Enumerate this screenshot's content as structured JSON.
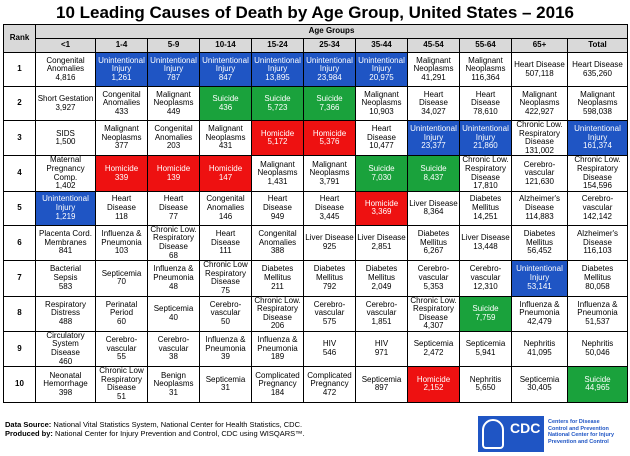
{
  "title": "10 Leading Causes of Death by Age Group, United States – 2016",
  "group_header": "Age Groups",
  "rank_header": "Rank",
  "colors": {
    "unintentional_injury": "#1f55c4",
    "suicide": "#1aa23c",
    "homicide": "#ee1111"
  },
  "chart_data": {
    "type": "table",
    "title": "10 Leading Causes of Death by Age Group, United States – 2016",
    "columns": [
      "<1",
      "1-4",
      "5-9",
      "10-14",
      "15-24",
      "25-34",
      "35-44",
      "45-54",
      "55-64",
      "65+",
      "Total"
    ],
    "rows": [
      {
        "rank": "1",
        "cells": [
          {
            "cause": "Congenital Anomalies",
            "deaths": "4,816",
            "color": "none"
          },
          {
            "cause": "Unintentional Injury",
            "deaths": "1,261",
            "color": "blue"
          },
          {
            "cause": "Unintentional Injury",
            "deaths": "787",
            "color": "blue"
          },
          {
            "cause": "Unintentional Injury",
            "deaths": "847",
            "color": "blue"
          },
          {
            "cause": "Unintentional Injury",
            "deaths": "13,895",
            "color": "blue"
          },
          {
            "cause": "Unintentional Injury",
            "deaths": "23,984",
            "color": "blue"
          },
          {
            "cause": "Unintentional Injury",
            "deaths": "20,975",
            "color": "blue"
          },
          {
            "cause": "Malignant Neoplasms",
            "deaths": "41,291",
            "color": "none"
          },
          {
            "cause": "Malignant Neoplasms",
            "deaths": "116,364",
            "color": "none"
          },
          {
            "cause": "Heart Disease",
            "deaths": "507,118",
            "color": "none"
          },
          {
            "cause": "Heart Disease",
            "deaths": "635,260",
            "color": "none"
          }
        ]
      },
      {
        "rank": "2",
        "cells": [
          {
            "cause": "Short Gestation",
            "deaths": "3,927",
            "color": "none"
          },
          {
            "cause": "Congenital Anomalies",
            "deaths": "433",
            "color": "none"
          },
          {
            "cause": "Malignant Neoplasms",
            "deaths": "449",
            "color": "none"
          },
          {
            "cause": "Suicide",
            "deaths": "436",
            "color": "green"
          },
          {
            "cause": "Suicide",
            "deaths": "5,723",
            "color": "green"
          },
          {
            "cause": "Suicide",
            "deaths": "7,366",
            "color": "green"
          },
          {
            "cause": "Malignant Neoplasms",
            "deaths": "10,903",
            "color": "none"
          },
          {
            "cause": "Heart Disease",
            "deaths": "34,027",
            "color": "none"
          },
          {
            "cause": "Heart Disease",
            "deaths": "78,610",
            "color": "none"
          },
          {
            "cause": "Malignant Neoplasms",
            "deaths": "422,927",
            "color": "none"
          },
          {
            "cause": "Malignant Neoplasms",
            "deaths": "598,038",
            "color": "none"
          }
        ]
      },
      {
        "rank": "3",
        "cells": [
          {
            "cause": "SIDS",
            "deaths": "1,500",
            "color": "none"
          },
          {
            "cause": "Malignant Neoplasms",
            "deaths": "377",
            "color": "none"
          },
          {
            "cause": "Congenital Anomalies",
            "deaths": "203",
            "color": "none"
          },
          {
            "cause": "Malignant Neoplasms",
            "deaths": "431",
            "color": "none"
          },
          {
            "cause": "Homicide",
            "deaths": "5,172",
            "color": "red"
          },
          {
            "cause": "Homicide",
            "deaths": "5,376",
            "color": "red"
          },
          {
            "cause": "Heart Disease",
            "deaths": "10,477",
            "color": "none"
          },
          {
            "cause": "Unintentional Injury",
            "deaths": "23,377",
            "color": "blue"
          },
          {
            "cause": "Unintentional Injury",
            "deaths": "21,860",
            "color": "blue"
          },
          {
            "cause": "Chronic Low. Respiratory Disease",
            "deaths": "131,002",
            "color": "none"
          },
          {
            "cause": "Unintentional Injury",
            "deaths": "161,374",
            "color": "blue"
          }
        ]
      },
      {
        "rank": "4",
        "cells": [
          {
            "cause": "Maternal Pregnancy Comp.",
            "deaths": "1,402",
            "color": "none"
          },
          {
            "cause": "Homicide",
            "deaths": "339",
            "color": "red"
          },
          {
            "cause": "Homicide",
            "deaths": "139",
            "color": "red"
          },
          {
            "cause": "Homicide",
            "deaths": "147",
            "color": "red"
          },
          {
            "cause": "Malignant Neoplasms",
            "deaths": "1,431",
            "color": "none"
          },
          {
            "cause": "Malignant Neoplasms",
            "deaths": "3,791",
            "color": "none"
          },
          {
            "cause": "Suicide",
            "deaths": "7,030",
            "color": "green"
          },
          {
            "cause": "Suicide",
            "deaths": "8,437",
            "color": "green"
          },
          {
            "cause": "Chronic Low. Respiratory Disease",
            "deaths": "17,810",
            "color": "none"
          },
          {
            "cause": "Cerebro-vascular",
            "deaths": "121,630",
            "color": "none"
          },
          {
            "cause": "Chronic Low. Respiratory Disease",
            "deaths": "154,596",
            "color": "none"
          }
        ]
      },
      {
        "rank": "5",
        "cells": [
          {
            "cause": "Unintentional Injury",
            "deaths": "1,219",
            "color": "blue"
          },
          {
            "cause": "Heart Disease",
            "deaths": "118",
            "color": "none"
          },
          {
            "cause": "Heart Disease",
            "deaths": "77",
            "color": "none"
          },
          {
            "cause": "Congenital Anomalies",
            "deaths": "146",
            "color": "none"
          },
          {
            "cause": "Heart Disease",
            "deaths": "949",
            "color": "none"
          },
          {
            "cause": "Heart Disease",
            "deaths": "3,445",
            "color": "none"
          },
          {
            "cause": "Homicide",
            "deaths": "3,369",
            "color": "red"
          },
          {
            "cause": "Liver Disease",
            "deaths": "8,364",
            "color": "none"
          },
          {
            "cause": "Diabetes Mellitus",
            "deaths": "14,251",
            "color": "none"
          },
          {
            "cause": "Alzheimer's Disease",
            "deaths": "114,883",
            "color": "none"
          },
          {
            "cause": "Cerebro-vascular",
            "deaths": "142,142",
            "color": "none"
          }
        ]
      },
      {
        "rank": "6",
        "cells": [
          {
            "cause": "Placenta Cord. Membranes",
            "deaths": "841",
            "color": "none"
          },
          {
            "cause": "Influenza & Pneumonia",
            "deaths": "103",
            "color": "none"
          },
          {
            "cause": "Chronic Low. Respiratory Disease",
            "deaths": "68",
            "color": "none"
          },
          {
            "cause": "Heart Disease",
            "deaths": "111",
            "color": "none"
          },
          {
            "cause": "Congenital Anomalies",
            "deaths": "388",
            "color": "none"
          },
          {
            "cause": "Liver Disease",
            "deaths": "925",
            "color": "none"
          },
          {
            "cause": "Liver Disease",
            "deaths": "2,851",
            "color": "none"
          },
          {
            "cause": "Diabetes Mellitus",
            "deaths": "6,267",
            "color": "none"
          },
          {
            "cause": "Liver Disease",
            "deaths": "13,448",
            "color": "none"
          },
          {
            "cause": "Diabetes Mellitus",
            "deaths": "56,452",
            "color": "none"
          },
          {
            "cause": "Alzheimer's Disease",
            "deaths": "116,103",
            "color": "none"
          }
        ]
      },
      {
        "rank": "7",
        "cells": [
          {
            "cause": "Bacterial Sepsis",
            "deaths": "583",
            "color": "none"
          },
          {
            "cause": "Septicemia",
            "deaths": "70",
            "color": "none"
          },
          {
            "cause": "Influenza & Pneumonia",
            "deaths": "48",
            "color": "none"
          },
          {
            "cause": "Chronic Low Respiratory Disease",
            "deaths": "75",
            "color": "none"
          },
          {
            "cause": "Diabetes Mellitus",
            "deaths": "211",
            "color": "none"
          },
          {
            "cause": "Diabetes Mellitus",
            "deaths": "792",
            "color": "none"
          },
          {
            "cause": "Diabetes Mellitus",
            "deaths": "2,049",
            "color": "none"
          },
          {
            "cause": "Cerebro-vascular",
            "deaths": "5,353",
            "color": "none"
          },
          {
            "cause": "Cerebro-vascular",
            "deaths": "12,310",
            "color": "none"
          },
          {
            "cause": "Unintentional Injury",
            "deaths": "53,141",
            "color": "blue"
          },
          {
            "cause": "Diabetes Mellitus",
            "deaths": "80,058",
            "color": "none"
          }
        ]
      },
      {
        "rank": "8",
        "cells": [
          {
            "cause": "Respiratory Distress",
            "deaths": "488",
            "color": "none"
          },
          {
            "cause": "Perinatal Period",
            "deaths": "60",
            "color": "none"
          },
          {
            "cause": "Septicemia",
            "deaths": "40",
            "color": "none"
          },
          {
            "cause": "Cerebro-vascular",
            "deaths": "50",
            "color": "none"
          },
          {
            "cause": "Chronic Low. Respiratory Disease",
            "deaths": "206",
            "color": "none"
          },
          {
            "cause": "Cerebro-vascular",
            "deaths": "575",
            "color": "none"
          },
          {
            "cause": "Cerebro-vascular",
            "deaths": "1,851",
            "color": "none"
          },
          {
            "cause": "Chronic Low. Respiratory Disease",
            "deaths": "4,307",
            "color": "none"
          },
          {
            "cause": "Suicide",
            "deaths": "7,759",
            "color": "green"
          },
          {
            "cause": "Influenza & Pneumonia",
            "deaths": "42,479",
            "color": "none"
          },
          {
            "cause": "Influenza & Pneumonia",
            "deaths": "51,537",
            "color": "none"
          }
        ]
      },
      {
        "rank": "9",
        "cells": [
          {
            "cause": "Circulatory System Disease",
            "deaths": "460",
            "color": "none"
          },
          {
            "cause": "Cerebro-vascular",
            "deaths": "55",
            "color": "none"
          },
          {
            "cause": "Cerebro-vascular",
            "deaths": "38",
            "color": "none"
          },
          {
            "cause": "Influenza & Pneumonia",
            "deaths": "39",
            "color": "none"
          },
          {
            "cause": "Influenza & Pneumonia",
            "deaths": "189",
            "color": "none"
          },
          {
            "cause": "HIV",
            "deaths": "546",
            "color": "none"
          },
          {
            "cause": "HIV",
            "deaths": "971",
            "color": "none"
          },
          {
            "cause": "Septicemia",
            "deaths": "2,472",
            "color": "none"
          },
          {
            "cause": "Septicemia",
            "deaths": "5,941",
            "color": "none"
          },
          {
            "cause": "Nephritis",
            "deaths": "41,095",
            "color": "none"
          },
          {
            "cause": "Nephritis",
            "deaths": "50,046",
            "color": "none"
          }
        ]
      },
      {
        "rank": "10",
        "cells": [
          {
            "cause": "Neonatal Hemorrhage",
            "deaths": "398",
            "color": "none"
          },
          {
            "cause": "Chronic Low Respiratory Disease",
            "deaths": "51",
            "color": "none"
          },
          {
            "cause": "Benign Neoplasms",
            "deaths": "31",
            "color": "none"
          },
          {
            "cause": "Septicemia",
            "deaths": "31",
            "color": "none"
          },
          {
            "cause": "Complicated Pregnancy",
            "deaths": "184",
            "color": "none"
          },
          {
            "cause": "Complicated Pregnancy",
            "deaths": "472",
            "color": "none"
          },
          {
            "cause": "Septicemia",
            "deaths": "897",
            "color": "none"
          },
          {
            "cause": "Homicide",
            "deaths": "2,152",
            "color": "red"
          },
          {
            "cause": "Nephritis",
            "deaths": "5,650",
            "color": "none"
          },
          {
            "cause": "Septicemia",
            "deaths": "30,405",
            "color": "none"
          },
          {
            "cause": "Suicide",
            "deaths": "44,965",
            "color": "green"
          }
        ]
      }
    ]
  },
  "footer": {
    "source_label": "Data Source:",
    "source_text": "National Vital Statistics System, National Center for Health Statistics, CDC.",
    "produced_label": "Produced by:",
    "produced_text": "National Center for Injury Prevention and Control, CDC using WISQARS™."
  },
  "logo": {
    "mark": "CDC",
    "text": [
      "Centers for Disease",
      "Control and Prevention",
      "National Center for Injury",
      "Prevention and Control"
    ],
    "color": "#1f55c4"
  }
}
